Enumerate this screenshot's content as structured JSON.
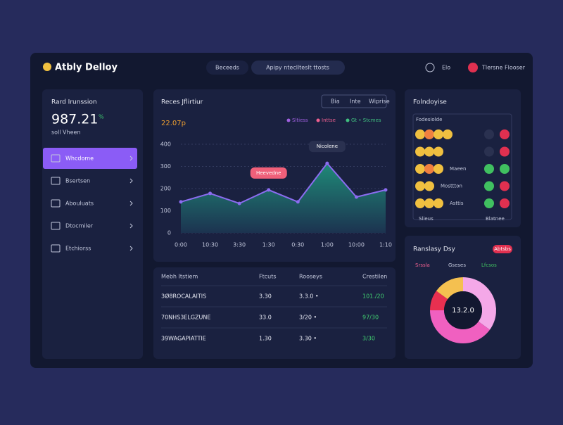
{
  "header": {
    "logo": "Atbly Delloy",
    "tabs": [
      "Beceeds",
      "Apipy ntecllteslt ttosts"
    ],
    "icon_label": "Elo",
    "user": "Tlersne Flooser"
  },
  "sidebar": {
    "title": "Rard Irunssion",
    "value": "987.21",
    "delta": "%",
    "subtitle": "soll Vheen",
    "menu": [
      "Whcdome",
      "Bsertsen",
      "Abouluats",
      "Dtocmiler",
      "Etchiorss"
    ]
  },
  "activity": {
    "title": "Reces Jflirtiur",
    "filters": [
      "Bia",
      "Inte",
      "Wiprise"
    ],
    "value": "22.07p",
    "legend": [
      {
        "name": "Sltiess",
        "color": "#a060e0"
      },
      {
        "name": "Inttse",
        "color": "#f06090"
      },
      {
        "name": "Gt • Stcmes",
        "color": "#40c080"
      }
    ],
    "chart": {
      "type": "area",
      "categories": [
        "0:00",
        "10:30",
        "3:30",
        "1:30",
        "0:30",
        "1:00",
        "10:00",
        "1:10"
      ],
      "values": [
        140,
        178,
        133,
        194,
        140,
        314,
        162,
        194
      ],
      "ylim": [
        0,
        400
      ],
      "yticks": [
        0,
        100,
        200,
        300,
        400
      ],
      "grid": true,
      "color": "#8b6cf0",
      "annotations": [
        {
          "index": 5,
          "text": "Nicolene",
          "color": "#2a3150"
        },
        {
          "index": 3,
          "text": "Heevedne",
          "color": "#f0607a"
        }
      ]
    }
  },
  "table": {
    "headers": [
      "Mebh Itstiem",
      "Ftcuts",
      "Rooseys",
      "Crestilen"
    ],
    "rows": [
      {
        "cells": [
          "3Ø8ROCALAITIS",
          "3.30",
          "3.3.0 •",
          "101./20"
        ],
        "color": "#40d070"
      },
      {
        "cells": [
          "70NHS3ELGZUNE",
          "33.0",
          "3/20 •",
          "97/30"
        ],
        "color": "#40d070"
      },
      {
        "cells": [
          "39WAGAPIATTIE",
          "1.30",
          "3.30 •",
          "3/30"
        ],
        "color": "#40d070"
      }
    ]
  },
  "positions": {
    "title": "Folndoyise",
    "header": "Fodesiolde",
    "rows": [
      {
        "icons": [
          "#f0c040",
          "#f08040",
          "#f0c040",
          "#f0c040"
        ],
        "text": "",
        "right": [
          "#2a3150",
          "#e03050"
        ]
      },
      {
        "icons": [
          "#f0c040",
          "#f0c040",
          "#f0c040"
        ],
        "text": "",
        "right": [
          "#2a3150",
          "#e03050"
        ]
      },
      {
        "icons": [
          "#f0c040",
          "#f08040",
          "#f0c040"
        ],
        "text": "Maeen",
        "right": [
          "#40c060",
          "#40c060"
        ]
      },
      {
        "icons": [
          "#f0c040",
          "#f0c040"
        ],
        "text": "Mosttton",
        "right": [
          "#40c060",
          "#e03050"
        ]
      },
      {
        "icons": [
          "#f0c040",
          "#f0c040",
          "#f0c040"
        ],
        "text": "Asttis",
        "right": [
          "#40c060",
          "#e03050"
        ]
      }
    ],
    "footer": [
      "Slieus",
      "Blatnee"
    ]
  },
  "breakdown": {
    "title": "Ranslasy Dsy",
    "badge": "Abtsbs",
    "legend": [
      {
        "name": "Srssla",
        "color": "#f06090"
      },
      {
        "name": "Gseses",
        "color": "#c3c8dc"
      },
      {
        "name": "Lfcsos",
        "color": "#40c060"
      }
    ],
    "center": "13.2.0",
    "chart": {
      "type": "donut",
      "values": [
        35,
        40,
        10,
        15
      ],
      "colors": [
        "#f4a8e8",
        "#f060c0",
        "#e83050",
        "#f4c050"
      ]
    }
  }
}
